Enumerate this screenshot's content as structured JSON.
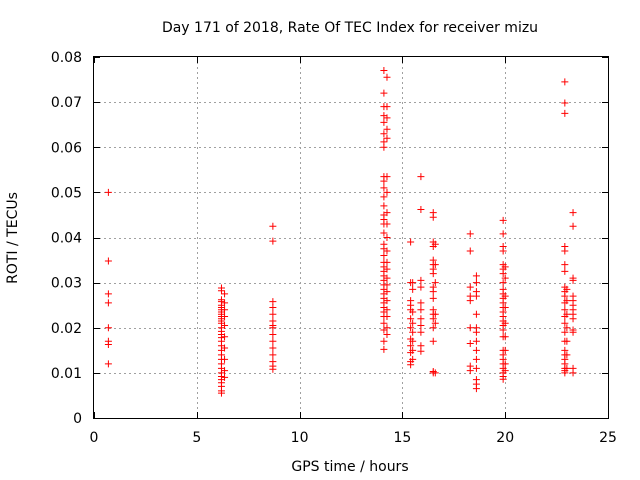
{
  "chart_data": {
    "type": "scatter",
    "title": "Day 171 of 2018, Rate Of TEC Index for receiver mizu",
    "xlabel": "GPS time / hours",
    "ylabel": "ROTI / TECUs",
    "xlim": [
      0,
      25
    ],
    "ylim": [
      0,
      0.08
    ],
    "grid": true,
    "marker": "+",
    "color": "#ff0000",
    "x_ticks": [
      0,
      5,
      10,
      15,
      20,
      25
    ],
    "x_tick_labels": [
      "0",
      "5",
      "10",
      "15",
      "20",
      "25"
    ],
    "y_ticks": [
      0,
      0.01,
      0.02,
      0.03,
      0.04,
      0.05,
      0.06,
      0.07,
      0.08
    ],
    "y_tick_labels": [
      "0",
      "0.01",
      "0.02",
      "0.03",
      "0.04",
      "0.05",
      "0.06",
      "0.07",
      "0.08"
    ],
    "series": [
      {
        "points": [
          [
            0.7,
            0.05
          ],
          [
            0.7,
            0.0348
          ],
          [
            0.7,
            0.0275
          ],
          [
            0.7,
            0.0255
          ],
          [
            0.7,
            0.02
          ],
          [
            0.7,
            0.017
          ],
          [
            0.7,
            0.0163
          ],
          [
            0.7,
            0.012
          ],
          [
            6.2,
            0.0288
          ],
          [
            6.2,
            0.0282
          ],
          [
            6.2,
            0.0262
          ],
          [
            6.2,
            0.0258
          ],
          [
            6.2,
            0.025
          ],
          [
            6.2,
            0.0245
          ],
          [
            6.2,
            0.024
          ],
          [
            6.2,
            0.0235
          ],
          [
            6.2,
            0.023
          ],
          [
            6.2,
            0.0225
          ],
          [
            6.2,
            0.022
          ],
          [
            6.2,
            0.0215
          ],
          [
            6.2,
            0.021
          ],
          [
            6.2,
            0.02
          ],
          [
            6.2,
            0.0192
          ],
          [
            6.2,
            0.0185
          ],
          [
            6.2,
            0.0178
          ],
          [
            6.2,
            0.017
          ],
          [
            6.2,
            0.016
          ],
          [
            6.2,
            0.015
          ],
          [
            6.2,
            0.014
          ],
          [
            6.2,
            0.013
          ],
          [
            6.2,
            0.012
          ],
          [
            6.2,
            0.011
          ],
          [
            6.2,
            0.01
          ],
          [
            6.2,
            0.0092
          ],
          [
            6.2,
            0.0085
          ],
          [
            6.2,
            0.0078
          ],
          [
            6.2,
            0.007
          ],
          [
            6.2,
            0.006
          ],
          [
            6.2,
            0.0055
          ],
          [
            6.35,
            0.0275
          ],
          [
            6.35,
            0.0255
          ],
          [
            6.35,
            0.024
          ],
          [
            6.35,
            0.0225
          ],
          [
            6.35,
            0.0205
          ],
          [
            6.35,
            0.018
          ],
          [
            6.35,
            0.0155
          ],
          [
            6.35,
            0.013
          ],
          [
            6.35,
            0.0105
          ],
          [
            6.35,
            0.009
          ],
          [
            8.7,
            0.0425
          ],
          [
            8.7,
            0.0392
          ],
          [
            8.7,
            0.0258
          ],
          [
            8.7,
            0.0245
          ],
          [
            8.7,
            0.023
          ],
          [
            8.7,
            0.0215
          ],
          [
            8.7,
            0.0205
          ],
          [
            8.7,
            0.02
          ],
          [
            8.7,
            0.0185
          ],
          [
            8.7,
            0.017
          ],
          [
            8.7,
            0.0155
          ],
          [
            8.7,
            0.014
          ],
          [
            8.7,
            0.0125
          ],
          [
            8.7,
            0.0115
          ],
          [
            8.7,
            0.0108
          ],
          [
            14.1,
            0.077
          ],
          [
            14.1,
            0.072
          ],
          [
            14.1,
            0.069
          ],
          [
            14.1,
            0.067
          ],
          [
            14.1,
            0.0655
          ],
          [
            14.1,
            0.063
          ],
          [
            14.1,
            0.0612
          ],
          [
            14.1,
            0.06
          ],
          [
            14.1,
            0.0535
          ],
          [
            14.1,
            0.0525
          ],
          [
            14.1,
            0.051
          ],
          [
            14.1,
            0.049
          ],
          [
            14.1,
            0.047
          ],
          [
            14.1,
            0.045
          ],
          [
            14.1,
            0.044
          ],
          [
            14.1,
            0.043
          ],
          [
            14.1,
            0.041
          ],
          [
            14.1,
            0.0385
          ],
          [
            14.1,
            0.0375
          ],
          [
            14.1,
            0.036
          ],
          [
            14.1,
            0.0345
          ],
          [
            14.1,
            0.0335
          ],
          [
            14.1,
            0.0325
          ],
          [
            14.1,
            0.0315
          ],
          [
            14.1,
            0.0305
          ],
          [
            14.1,
            0.0295
          ],
          [
            14.1,
            0.0285
          ],
          [
            14.1,
            0.0275
          ],
          [
            14.1,
            0.0265
          ],
          [
            14.1,
            0.0255
          ],
          [
            14.1,
            0.0245
          ],
          [
            14.1,
            0.0235
          ],
          [
            14.1,
            0.0225
          ],
          [
            14.1,
            0.021
          ],
          [
            14.1,
            0.0195
          ],
          [
            14.1,
            0.017
          ],
          [
            14.1,
            0.0152
          ],
          [
            14.25,
            0.0755
          ],
          [
            14.25,
            0.069
          ],
          [
            14.25,
            0.0665
          ],
          [
            14.25,
            0.064
          ],
          [
            14.25,
            0.062
          ],
          [
            14.25,
            0.0535
          ],
          [
            14.25,
            0.05
          ],
          [
            14.25,
            0.0455
          ],
          [
            14.25,
            0.043
          ],
          [
            14.25,
            0.04
          ],
          [
            14.25,
            0.037
          ],
          [
            14.25,
            0.0345
          ],
          [
            14.25,
            0.033
          ],
          [
            14.25,
            0.031
          ],
          [
            14.25,
            0.0295
          ],
          [
            14.25,
            0.028
          ],
          [
            14.25,
            0.026
          ],
          [
            14.25,
            0.024
          ],
          [
            14.25,
            0.0225
          ],
          [
            14.25,
            0.02
          ],
          [
            14.25,
            0.0185
          ],
          [
            15.4,
            0.039
          ],
          [
            15.4,
            0.03
          ],
          [
            15.4,
            0.026
          ],
          [
            15.4,
            0.025
          ],
          [
            15.4,
            0.024
          ],
          [
            15.4,
            0.022
          ],
          [
            15.4,
            0.02
          ],
          [
            15.4,
            0.0175
          ],
          [
            15.4,
            0.016
          ],
          [
            15.4,
            0.0145
          ],
          [
            15.4,
            0.0125
          ],
          [
            15.4,
            0.0118
          ],
          [
            15.5,
            0.03
          ],
          [
            15.5,
            0.0285
          ],
          [
            15.5,
            0.0235
          ],
          [
            15.5,
            0.021
          ],
          [
            15.5,
            0.019
          ],
          [
            15.5,
            0.017
          ],
          [
            15.5,
            0.015
          ],
          [
            15.5,
            0.013
          ],
          [
            15.9,
            0.0535
          ],
          [
            15.9,
            0.0462
          ],
          [
            15.9,
            0.0305
          ],
          [
            15.9,
            0.029
          ],
          [
            15.9,
            0.0255
          ],
          [
            15.9,
            0.024
          ],
          [
            15.9,
            0.022
          ],
          [
            15.9,
            0.0205
          ],
          [
            15.9,
            0.019
          ],
          [
            15.9,
            0.016
          ],
          [
            15.9,
            0.0148
          ],
          [
            16.5,
            0.0455
          ],
          [
            16.5,
            0.0445
          ],
          [
            16.5,
            0.039
          ],
          [
            16.5,
            0.038
          ],
          [
            16.5,
            0.035
          ],
          [
            16.5,
            0.034
          ],
          [
            16.5,
            0.033
          ],
          [
            16.5,
            0.032
          ],
          [
            16.5,
            0.029
          ],
          [
            16.5,
            0.028
          ],
          [
            16.5,
            0.0265
          ],
          [
            16.5,
            0.024
          ],
          [
            16.5,
            0.023
          ],
          [
            16.5,
            0.022
          ],
          [
            16.5,
            0.02
          ],
          [
            16.5,
            0.017
          ],
          [
            16.5,
            0.0103
          ],
          [
            16.5,
            0.01
          ],
          [
            16.6,
            0.0385
          ],
          [
            16.6,
            0.034
          ],
          [
            16.6,
            0.03
          ],
          [
            16.6,
            0.023
          ],
          [
            16.6,
            0.021
          ],
          [
            16.6,
            0.01
          ],
          [
            18.3,
            0.0408
          ],
          [
            18.3,
            0.037
          ],
          [
            18.3,
            0.029
          ],
          [
            18.3,
            0.027
          ],
          [
            18.3,
            0.026
          ],
          [
            18.3,
            0.02
          ],
          [
            18.3,
            0.0165
          ],
          [
            18.3,
            0.0115
          ],
          [
            18.3,
            0.0105
          ],
          [
            18.6,
            0.0315
          ],
          [
            18.6,
            0.03
          ],
          [
            18.6,
            0.028
          ],
          [
            18.6,
            0.027
          ],
          [
            18.6,
            0.023
          ],
          [
            18.6,
            0.02
          ],
          [
            18.6,
            0.019
          ],
          [
            18.6,
            0.017
          ],
          [
            18.6,
            0.015
          ],
          [
            18.6,
            0.013
          ],
          [
            18.6,
            0.011
          ],
          [
            18.6,
            0.0085
          ],
          [
            18.6,
            0.0075
          ],
          [
            18.6,
            0.0065
          ],
          [
            19.9,
            0.0438
          ],
          [
            19.9,
            0.0408
          ],
          [
            19.9,
            0.038
          ],
          [
            19.9,
            0.037
          ],
          [
            19.9,
            0.034
          ],
          [
            19.9,
            0.033
          ],
          [
            19.9,
            0.032
          ],
          [
            19.9,
            0.03
          ],
          [
            19.9,
            0.0285
          ],
          [
            19.9,
            0.0275
          ],
          [
            19.9,
            0.0265
          ],
          [
            19.9,
            0.0255
          ],
          [
            19.9,
            0.0245
          ],
          [
            19.9,
            0.0235
          ],
          [
            19.9,
            0.0225
          ],
          [
            19.9,
            0.0215
          ],
          [
            19.9,
            0.0205
          ],
          [
            19.9,
            0.0195
          ],
          [
            19.9,
            0.018
          ],
          [
            19.9,
            0.015
          ],
          [
            19.9,
            0.014
          ],
          [
            19.9,
            0.013
          ],
          [
            19.9,
            0.012
          ],
          [
            19.9,
            0.011
          ],
          [
            19.9,
            0.01
          ],
          [
            19.9,
            0.0092
          ],
          [
            19.9,
            0.0086
          ],
          [
            20.0,
            0.0335
          ],
          [
            20.0,
            0.031
          ],
          [
            20.0,
            0.027
          ],
          [
            20.0,
            0.0245
          ],
          [
            20.0,
            0.021
          ],
          [
            20.0,
            0.018
          ],
          [
            20.0,
            0.015
          ],
          [
            20.0,
            0.012
          ],
          [
            20.0,
            0.0105
          ],
          [
            22.9,
            0.0745
          ],
          [
            22.9,
            0.0698
          ],
          [
            22.9,
            0.0675
          ],
          [
            22.9,
            0.038
          ],
          [
            22.9,
            0.037
          ],
          [
            22.9,
            0.034
          ],
          [
            22.9,
            0.0325
          ],
          [
            22.9,
            0.029
          ],
          [
            22.9,
            0.028
          ],
          [
            22.9,
            0.027
          ],
          [
            22.9,
            0.0255
          ],
          [
            22.9,
            0.024
          ],
          [
            22.9,
            0.0225
          ],
          [
            22.9,
            0.021
          ],
          [
            22.9,
            0.019
          ],
          [
            22.9,
            0.017
          ],
          [
            22.9,
            0.015
          ],
          [
            22.9,
            0.014
          ],
          [
            22.9,
            0.013
          ],
          [
            22.9,
            0.012
          ],
          [
            22.9,
            0.011
          ],
          [
            22.9,
            0.0105
          ],
          [
            22.9,
            0.01
          ],
          [
            23.0,
            0.0285
          ],
          [
            23.0,
            0.026
          ],
          [
            23.0,
            0.023
          ],
          [
            23.0,
            0.02
          ],
          [
            23.0,
            0.017
          ],
          [
            23.0,
            0.014
          ],
          [
            23.0,
            0.011
          ],
          [
            23.3,
            0.0455
          ],
          [
            23.3,
            0.0425
          ],
          [
            23.3,
            0.031
          ],
          [
            23.3,
            0.0305
          ],
          [
            23.3,
            0.027
          ],
          [
            23.3,
            0.026
          ],
          [
            23.3,
            0.025
          ],
          [
            23.3,
            0.024
          ],
          [
            23.3,
            0.023
          ],
          [
            23.3,
            0.022
          ],
          [
            23.3,
            0.0195
          ],
          [
            23.3,
            0.019
          ],
          [
            23.3,
            0.011
          ],
          [
            23.3,
            0.01
          ]
        ]
      }
    ]
  }
}
